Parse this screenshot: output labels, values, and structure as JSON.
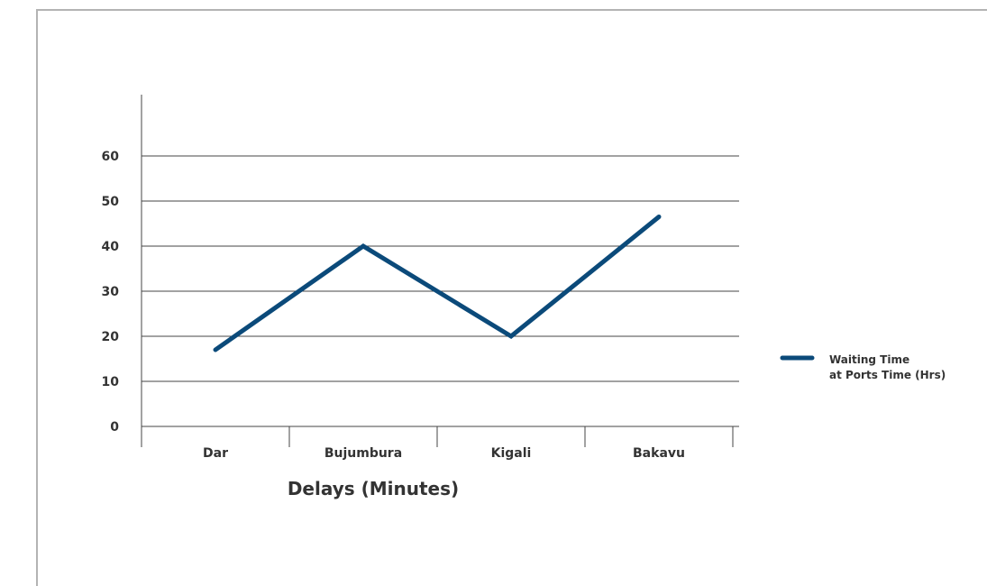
{
  "chart_data": {
    "type": "line",
    "categories": [
      "Dar",
      "Bujumbura",
      "Kigali",
      "Bakavu"
    ],
    "series": [
      {
        "name": "Waiting Time at Ports Time (Hrs)",
        "values": [
          17,
          40,
          20,
          46.5
        ]
      }
    ],
    "legend": {
      "line1": "Waiting Time",
      "line2": "at Ports Time (Hrs)",
      "placement": "right"
    },
    "xlabel": "Delays (Minutes)",
    "ylabel": "",
    "title": "",
    "ylim": [
      0,
      60
    ],
    "yticks": [
      0,
      10,
      20,
      30,
      40,
      50,
      60
    ],
    "grid": true,
    "colors": {
      "series": "#0b4a7a",
      "grid": "#444444",
      "axis": "#444444"
    }
  }
}
